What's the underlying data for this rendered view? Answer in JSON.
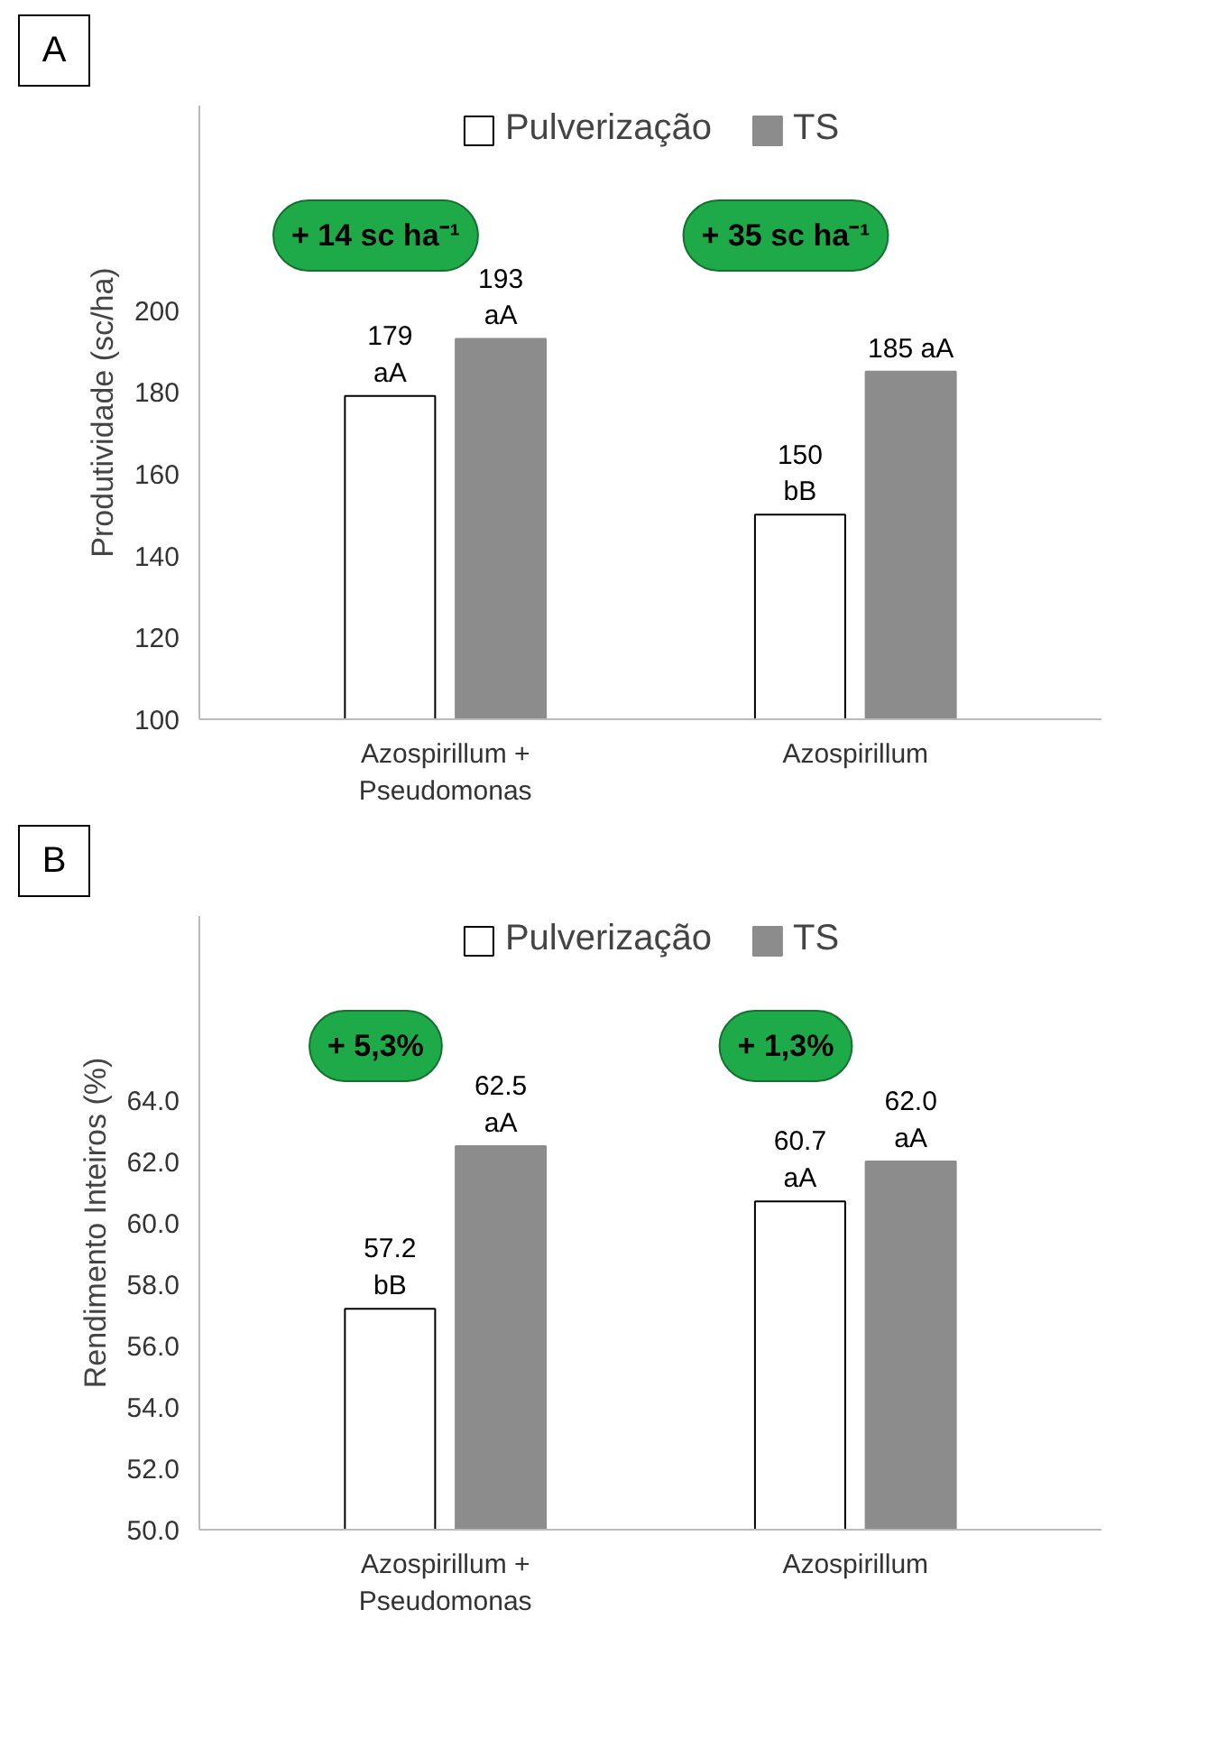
{
  "chart_data": [
    {
      "type": "bar",
      "ylabel": "Produtividade (sc/ha)",
      "categories": [
        "Azospirillum + Pseudomonas",
        "Azospirillum"
      ],
      "series": [
        {
          "name": "Pulverização",
          "color": "#ffffff",
          "values": [
            179,
            150
          ],
          "value_labels": [
            "179\naA",
            "150\nbB"
          ]
        },
        {
          "name": "TS",
          "color": "#8c8c8c",
          "values": [
            193,
            185
          ],
          "value_labels": [
            "193\naA",
            "185 aA"
          ]
        }
      ],
      "ylim": [
        100,
        250
      ],
      "yticks": [
        100,
        120,
        140,
        160,
        180,
        200
      ],
      "grid": false,
      "legend": "top",
      "annotations": [
        "A",
        "+ 14 sc ha⁻¹",
        "+ 35 sc ha⁻¹"
      ]
    },
    {
      "type": "bar",
      "ylabel": "Rendimento Inteiros (%)",
      "categories": [
        "Azospirillum + Pseudomonas",
        "Azospirillum"
      ],
      "series": [
        {
          "name": "Pulverização",
          "color": "#ffffff",
          "values": [
            57.2,
            60.7
          ],
          "value_labels": [
            "57.2\nbB",
            "60.7\naA"
          ]
        },
        {
          "name": "TS",
          "color": "#8c8c8c",
          "values": [
            62.5,
            62.0
          ],
          "value_labels": [
            "62.5\naA",
            "62.0\naA"
          ]
        }
      ],
      "ylim": [
        50,
        70
      ],
      "yticks": [
        {
          "value": 50,
          "label": "50.0"
        },
        {
          "value": 52,
          "label": "52.0"
        },
        {
          "value": 54,
          "label": "54.0"
        },
        {
          "value": 56,
          "label": "56.0"
        },
        {
          "value": 58,
          "label": "58.0"
        },
        {
          "value": 60,
          "label": "60.0"
        },
        {
          "value": 62,
          "label": "62.0"
        },
        {
          "value": 64,
          "label": "64.0"
        }
      ],
      "grid": false,
      "legend": "top",
      "annotations": [
        "B",
        "+ 5,3%",
        "+ 1,3%"
      ]
    }
  ]
}
